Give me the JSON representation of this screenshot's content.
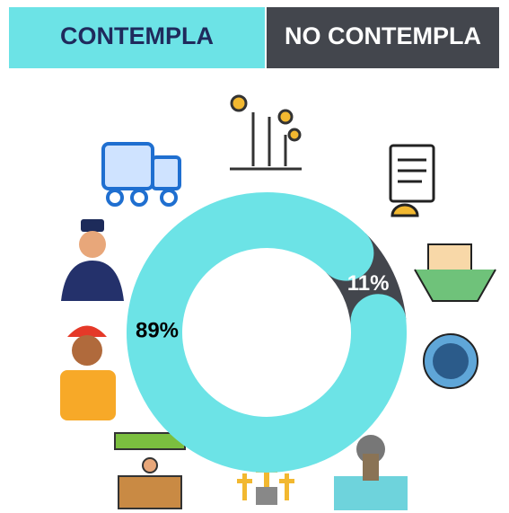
{
  "chart_data": {
    "type": "donut",
    "categories": [
      "CONTEMPLA",
      "NO CONTEMPLA"
    ],
    "values": [
      89,
      11
    ],
    "value_labels": [
      "89%",
      "11%"
    ],
    "colors": [
      "#6ce3e6",
      "#43464d"
    ]
  }
}
